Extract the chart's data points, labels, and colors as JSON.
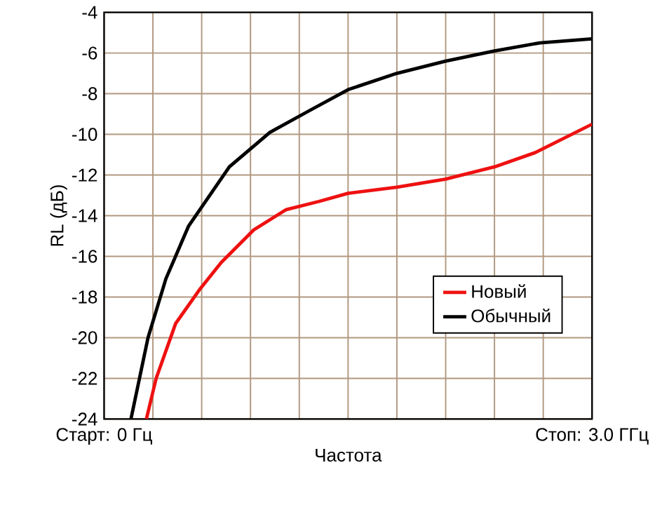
{
  "chart_data": {
    "type": "line",
    "xlabel": "Частота",
    "ylabel": "RL (дБ)",
    "xlim": [
      0,
      3.0
    ],
    "ylim": [
      -24,
      -4
    ],
    "xticks": [
      {
        "value": 0,
        "label": "Старт: 0 Гц"
      },
      {
        "value": 0.3,
        "label": null
      },
      {
        "value": 0.6,
        "label": null
      },
      {
        "value": 0.9,
        "label": null
      },
      {
        "value": 1.2,
        "label": null
      },
      {
        "value": 1.5,
        "label": null
      },
      {
        "value": 1.8,
        "label": null
      },
      {
        "value": 2.1,
        "label": null
      },
      {
        "value": 2.4,
        "label": null
      },
      {
        "value": 2.7,
        "label": null
      },
      {
        "value": 3.0,
        "label": "Стоп: 3.0 ГГц"
      }
    ],
    "yticks": [
      -24,
      -22,
      -20,
      -18,
      -16,
      -14,
      -12,
      -10,
      -8,
      -6,
      -4
    ],
    "grid": true,
    "legend": "bottom right",
    "line_style": "solid",
    "marker": "none",
    "series": [
      {
        "name": "Новый",
        "color": "#ee1111",
        "x": [
          0.26,
          0.32,
          0.44,
          0.59,
          0.72,
          0.92,
          1.12,
          1.32,
          1.5,
          1.8,
          2.1,
          2.4,
          2.65,
          2.85,
          3.0
        ],
        "values": [
          -24,
          -22,
          -19.3,
          -17.6,
          -16.3,
          -14.7,
          -13.7,
          -13.3,
          -12.9,
          -12.6,
          -12.2,
          -11.6,
          -10.9,
          -10.1,
          -9.5
        ]
      },
      {
        "name": "Обычный",
        "color": "#000000",
        "x": [
          0.165,
          0.27,
          0.38,
          0.52,
          0.77,
          1.02,
          1.27,
          1.5,
          1.8,
          2.1,
          2.4,
          2.68,
          3.0
        ],
        "values": [
          -24,
          -20,
          -17.1,
          -14.5,
          -11.6,
          -9.9,
          -8.8,
          -7.8,
          -7.0,
          -6.4,
          -5.9,
          -5.5,
          -5.3
        ]
      }
    ]
  }
}
